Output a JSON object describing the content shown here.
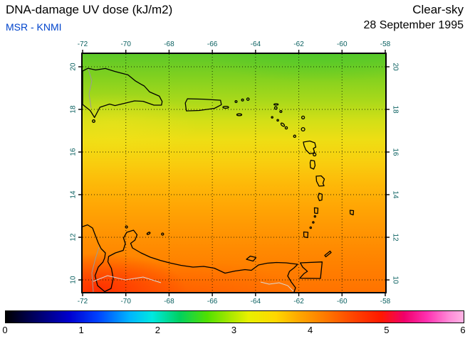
{
  "header": {
    "title": "DNA-damage UV dose (kJ/m2)",
    "source": "MSR - KNMI",
    "condition": "Clear-sky",
    "date": "28 September 1995"
  },
  "colors": {
    "source_text": "#0044cc",
    "axis_tick": "#0a6060",
    "frame": "#000000"
  },
  "map_axes": {
    "lon_labels": [
      "-72",
      "-70",
      "-68",
      "-66",
      "-64",
      "-62",
      "-60",
      "-58"
    ],
    "lat_labels": [
      "20",
      "18",
      "16",
      "14",
      "12",
      "10"
    ]
  },
  "colorbar": {
    "tick_labels": [
      "0",
      "1",
      "2",
      "3",
      "4",
      "5",
      "6"
    ],
    "gradient": [
      "#000000 0%",
      "#00004d 5%",
      "#0000d0 14%",
      "#0040ff 20%",
      "#00b4ff 27%",
      "#00e8e0 32%",
      "#00d060 38%",
      "#50e000 44%",
      "#a8e800 49%",
      "#e8f000 53%",
      "#ffd800 59%",
      "#ffa800 64%",
      "#ff7800 70%",
      "#ff4400 76%",
      "#ff1800 82%",
      "#f0006a 87%",
      "#ff30b0 92%",
      "#ff8cd8 97%",
      "#ffb4e4 100%"
    ]
  },
  "chart_data": {
    "type": "heatmap",
    "title": "DNA-damage UV dose (kJ/m2)",
    "conditions": "Clear-sky",
    "date": "28 September 1995",
    "source": "MSR - KNMI",
    "x_axis": {
      "name": "longitude",
      "range": [
        -72,
        -58
      ],
      "ticks": [
        -72,
        -70,
        -68,
        -66,
        -64,
        -62,
        -60,
        -58
      ]
    },
    "y_axis": {
      "name": "latitude",
      "range": [
        9.4,
        20.6
      ],
      "ticks": [
        20,
        18,
        16,
        14,
        12,
        10
      ]
    },
    "color_scale": {
      "range": [
        0,
        6
      ],
      "ticks": [
        0,
        1,
        2,
        3,
        4,
        5,
        6
      ],
      "unit": "kJ/m2",
      "style": "rainbow: black-blue-cyan-green-yellow-orange-red-magenta-pink"
    },
    "field": {
      "description": "DNA-damage UV dose increases smoothly from north (green) to south (orange-red); maximum in the bottom-left corner of the map",
      "samples_by_lat": [
        {
          "lat": 20,
          "dose": 2.8
        },
        {
          "lat": 18,
          "dose": 3.0
        },
        {
          "lat": 16,
          "dose": 3.3
        },
        {
          "lat": 14,
          "dose": 3.7
        },
        {
          "lat": 12,
          "dose": 4.0
        },
        {
          "lat": 10,
          "dose": 4.4
        }
      ],
      "approx_min": 2.7,
      "approx_max": 4.7
    },
    "map_overlay": "Caribbean coastlines: Hispaniola, Puerto Rico, Virgin Islands, Lesser Antilles arc, Barbados, Trinidad and Tobago, Margarita, ABC islands, Venezuela/Colombia coast with Lake Maracaibo",
    "grid": "dotted graticule every 2 degrees",
    "legend_position": "bottom horizontal colorbar"
  }
}
